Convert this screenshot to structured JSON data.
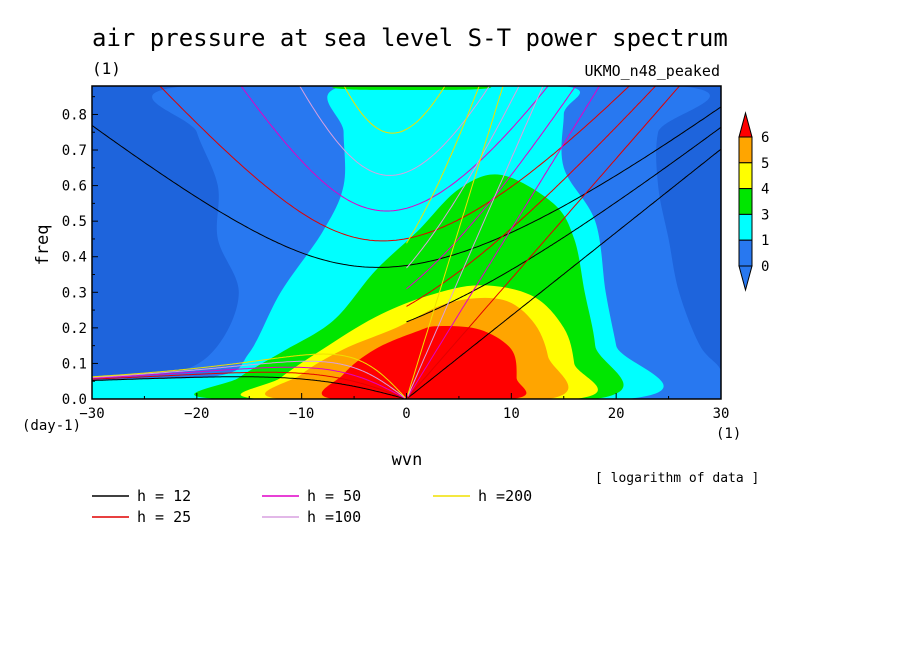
{
  "chart_data": {
    "type": "heatmap",
    "title": "air pressure at sea level S-T power spectrum",
    "units": "(1)",
    "model": "UKMO_n48_peaked",
    "xlabel": "wvn",
    "ylabel": "freq",
    "x_units": "(1)",
    "y_units": "(day-1)",
    "xlim": [
      -30,
      30
    ],
    "ylim": [
      0,
      0.88
    ],
    "x_ticks": [
      -30,
      -20,
      -10,
      0,
      10,
      20,
      30
    ],
    "y_ticks": [
      0.0,
      0.1,
      0.2,
      0.3,
      0.4,
      0.5,
      0.6,
      0.7,
      0.8
    ],
    "x_tick_labels": [
      "−30",
      "−20",
      "−10",
      "0",
      "10",
      "20",
      "30"
    ],
    "y_tick_labels": [
      "0.0",
      "0.1",
      "0.2",
      "0.3",
      "0.4",
      "0.5",
      "0.6",
      "0.7",
      "0.8"
    ],
    "note": "[ logarithm of data ]",
    "colorbar": {
      "levels": [
        "6",
        "5",
        "4",
        "3",
        "1",
        "0"
      ],
      "colors": [
        "#2878f0",
        "#00ffff",
        "#00e600",
        "#ffff00",
        "#ffa500",
        "#ff0000"
      ],
      "extend": "both"
    },
    "background_color": "#1e64dc",
    "contours": [
      {
        "level": 0,
        "color": "#2878f0",
        "points": [
          [
            -30,
            0.06
          ],
          [
            -22,
            0.075
          ],
          [
            -18,
            0.15
          ],
          [
            -16,
            0.3
          ],
          [
            -18,
            0.45
          ],
          [
            -18,
            0.6
          ],
          [
            -20,
            0.75
          ],
          [
            -21,
            0.88
          ],
          [
            26,
            0.88
          ],
          [
            24,
            0.75
          ],
          [
            24,
            0.6
          ],
          [
            25,
            0.45
          ],
          [
            26,
            0.3
          ],
          [
            28,
            0.15
          ],
          [
            30,
            0.08
          ],
          [
            30,
            0
          ],
          [
            -30,
            0
          ]
        ]
      },
      {
        "level": 1,
        "color": "#00ffff",
        "points": [
          [
            -30,
            0.05
          ],
          [
            -18,
            0.065
          ],
          [
            -15,
            0.13
          ],
          [
            -12,
            0.3
          ],
          [
            -8,
            0.47
          ],
          [
            -6,
            0.6
          ],
          [
            -6,
            0.75
          ],
          [
            -6,
            0.88
          ],
          [
            15,
            0.88
          ],
          [
            15,
            0.8
          ],
          [
            15,
            0.65
          ],
          [
            18,
            0.5
          ],
          [
            19,
            0.3
          ],
          [
            20,
            0.15
          ],
          [
            21,
            0
          ],
          [
            -30,
            0
          ]
        ]
      },
      {
        "level": 3,
        "color": "#00e600",
        "points": [
          [
            -18,
            0
          ],
          [
            -16,
            0.06
          ],
          [
            -12,
            0.13
          ],
          [
            -7,
            0.22
          ],
          [
            -3,
            0.36
          ],
          [
            1,
            0.47
          ],
          [
            5,
            0.59
          ],
          [
            9,
            0.63
          ],
          [
            14,
            0.55
          ],
          [
            16,
            0.45
          ],
          [
            17,
            0.3
          ],
          [
            18,
            0.15
          ],
          [
            18,
            0
          ]
        ]
      },
      {
        "level": 4,
        "color": "#ffff00",
        "points": [
          [
            -14,
            0
          ],
          [
            -12,
            0.06
          ],
          [
            -8,
            0.14
          ],
          [
            -3,
            0.23
          ],
          [
            2,
            0.29
          ],
          [
            7,
            0.32
          ],
          [
            12,
            0.29
          ],
          [
            15,
            0.2
          ],
          [
            16,
            0.1
          ],
          [
            16,
            0
          ]
        ]
      },
      {
        "level": 5,
        "color": "#ffa500",
        "points": [
          [
            -12,
            0
          ],
          [
            -10,
            0.07
          ],
          [
            -6,
            0.14
          ],
          [
            -1,
            0.2
          ],
          [
            4,
            0.27
          ],
          [
            9,
            0.28
          ],
          [
            12,
            0.22
          ],
          [
            13.5,
            0.12
          ],
          [
            13.5,
            0
          ]
        ]
      },
      {
        "level": 6,
        "color": "#ff0000",
        "points": [
          [
            -7,
            0
          ],
          [
            -6,
            0.07
          ],
          [
            -3,
            0.14
          ],
          [
            1,
            0.19
          ],
          [
            3,
            0.205
          ],
          [
            7,
            0.195
          ],
          [
            10,
            0.14
          ],
          [
            10.5,
            0.06
          ],
          [
            10,
            0
          ]
        ]
      }
    ],
    "top_patches": [
      {
        "color": "#00e600",
        "points": [
          [
            -6,
            0.88
          ],
          [
            -5,
            0.87
          ],
          [
            6,
            0.87
          ],
          [
            7,
            0.88
          ]
        ]
      }
    ],
    "dispersion_curves": [
      {
        "label": "h = 12",
        "h": 12,
        "color": "#000000"
      },
      {
        "label": "h = 25",
        "h": 25,
        "color": "#e00000"
      },
      {
        "label": "h = 50",
        "h": 50,
        "color": "#e000c8"
      },
      {
        "label": "h =100",
        "h": 100,
        "color": "#d8a0e0"
      },
      {
        "label": "h =200",
        "h": 200,
        "color": "#f0e000"
      }
    ]
  }
}
